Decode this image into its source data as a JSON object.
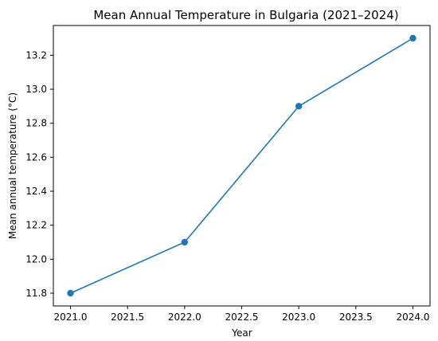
{
  "chart_data": {
    "type": "line",
    "title": "Mean Annual Temperature in Bulgaria (2021–2024)",
    "xlabel": "Year",
    "ylabel": "Mean annual temperature (°C)",
    "x": [
      2021,
      2022,
      2023,
      2024
    ],
    "series": [
      {
        "values": [
          11.8,
          12.1,
          12.9,
          13.3
        ],
        "color": "#1f77b4"
      }
    ],
    "xticks": [
      2021.0,
      2021.5,
      2022.0,
      2022.5,
      2023.0,
      2023.5,
      2024.0
    ],
    "xtick_labels": [
      "2021.0",
      "2021.5",
      "2022.0",
      "2022.5",
      "2023.0",
      "2023.5",
      "2024.0"
    ],
    "yticks": [
      11.8,
      12.0,
      12.2,
      12.4,
      12.6,
      12.8,
      13.0,
      13.2
    ],
    "ytick_labels": [
      "11.8",
      "12.0",
      "12.2",
      "12.4",
      "12.6",
      "12.8",
      "13.0",
      "13.2"
    ],
    "xlim": [
      2020.85,
      2024.15
    ],
    "ylim": [
      11.725,
      13.375
    ],
    "grid": false,
    "legend": "none"
  }
}
